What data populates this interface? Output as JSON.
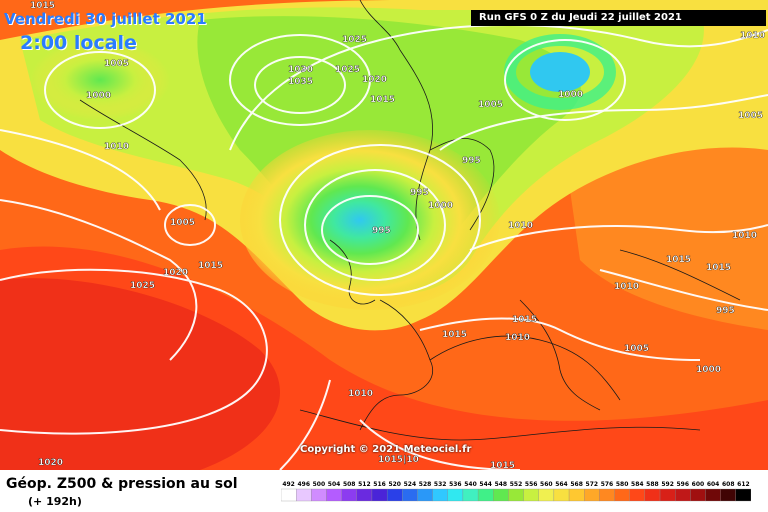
{
  "header": {
    "date_label": "Vendredi 30 juillet 2021",
    "time_label": "2:00 locale",
    "run_label": "Run GFS 0 Z du Jeudi 22 juillet 2021"
  },
  "copyright": "Copyright © 2021 Meteociel.fr",
  "legend": {
    "title": "Géop. Z500 & pression au sol",
    "subtitle": "(+ 192h)",
    "scale_values": [
      "492",
      "496",
      "500",
      "504",
      "508",
      "512",
      "516",
      "520",
      "524",
      "528",
      "532",
      "536",
      "540",
      "544",
      "548",
      "552",
      "556",
      "560",
      "564",
      "568",
      "572",
      "576",
      "580",
      "584",
      "588",
      "592",
      "596",
      "600",
      "604",
      "608",
      "612"
    ],
    "scale_colors": [
      "#ffffff",
      "#e8c8ff",
      "#d08cff",
      "#b45cff",
      "#8c3cf0",
      "#6a2ae0",
      "#4a24d8",
      "#2a40e8",
      "#2a6cf0",
      "#2a98f8",
      "#30c8ff",
      "#30e8f0",
      "#40f0c0",
      "#40f088",
      "#60e850",
      "#98e838",
      "#c8f040",
      "#f0f050",
      "#f8e040",
      "#ffc830",
      "#ffa828",
      "#ff8820",
      "#ff6818",
      "#ff4818",
      "#f03018",
      "#d82018",
      "#c01818",
      "#a01010",
      "#700808",
      "#400404",
      "#000000"
    ]
  },
  "isobar_labels": [
    {
      "text": "1015"
    },
    {
      "text": "1005"
    },
    {
      "text": "1000"
    },
    {
      "text": "1025"
    },
    {
      "text": "1030"
    },
    {
      "text": "1035"
    },
    {
      "text": "1025"
    },
    {
      "text": "1020"
    },
    {
      "text": "1015"
    },
    {
      "text": "1005"
    },
    {
      "text": "1000"
    },
    {
      "text": "1010"
    },
    {
      "text": "1005"
    },
    {
      "text": "1010"
    },
    {
      "text": "995"
    },
    {
      "text": "995"
    },
    {
      "text": "1000"
    },
    {
      "text": "995"
    },
    {
      "text": "1010"
    },
    {
      "text": "1010"
    },
    {
      "text": "1020"
    },
    {
      "text": "1015"
    },
    {
      "text": "1025"
    },
    {
      "text": "1015"
    },
    {
      "text": "1015"
    },
    {
      "text": "1015"
    },
    {
      "text": "1010"
    },
    {
      "text": "1005"
    },
    {
      "text": "995"
    },
    {
      "text": "1000"
    },
    {
      "text": "1010"
    },
    {
      "text": "1015|10"
    },
    {
      "text": "1020"
    },
    {
      "text": "1015"
    },
    {
      "text": "1015"
    },
    {
      "text": "1010"
    },
    {
      "text": "1005"
    }
  ]
}
